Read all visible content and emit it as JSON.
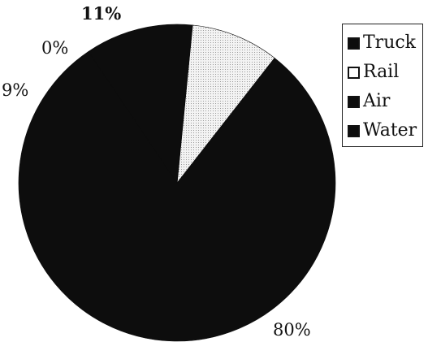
{
  "chart_data": {
    "type": "pie",
    "title": "",
    "categories": [
      "Truck",
      "Rail",
      "Air",
      "Water"
    ],
    "values": [
      80,
      9,
      0,
      11
    ],
    "labels": [
      "80%",
      "9%",
      "0%",
      "11%"
    ],
    "colors": [
      "#0d0d0d",
      "#f1f1f1",
      "#0d0d0d",
      "#0d0d0d"
    ],
    "legend_position": "top-right"
  }
}
